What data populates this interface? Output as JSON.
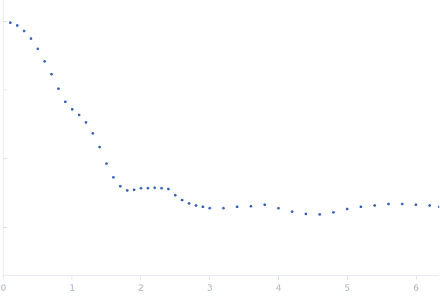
{
  "chart_data": {
    "type": "scatter",
    "color": "#3a66b5",
    "marker": "circle",
    "log": "y",
    "grid": false,
    "tick_labels": "x",
    "x": [
      0.1,
      0.2,
      0.3,
      0.4,
      0.5,
      0.6,
      0.7,
      0.8,
      0.9,
      1.0,
      1.1,
      1.2,
      1.3,
      1.4,
      1.5,
      1.6,
      1.7,
      1.8,
      1.9,
      2.0,
      2.1,
      2.2,
      2.3,
      2.4,
      2.5,
      2.6,
      2.7,
      2.8,
      2.9,
      3.0,
      3.2,
      3.4,
      3.6,
      3.8,
      4.0,
      4.2,
      4.4,
      4.6,
      4.8,
      5.0,
      5.2,
      5.4,
      5.6,
      5.8,
      6.0,
      6.2,
      6.34
    ],
    "values": [
      0.955,
      0.871,
      0.724,
      0.562,
      0.398,
      0.263,
      0.17,
      0.105,
      0.0676,
      0.0525,
      0.0437,
      0.0339,
      0.0234,
      0.0148,
      0.00851,
      0.00537,
      0.00398,
      0.00347,
      0.00355,
      0.00372,
      0.00372,
      0.0038,
      0.00372,
      0.00363,
      0.00295,
      0.00251,
      0.00224,
      0.00209,
      0.002,
      0.00191,
      0.00191,
      0.002,
      0.00204,
      0.00214,
      0.00191,
      0.0017,
      0.00158,
      0.00155,
      0.00166,
      0.00186,
      0.002,
      0.00209,
      0.00219,
      0.00219,
      0.00214,
      0.00209,
      0.002
    ],
    "xlim": [
      0,
      6.34
    ],
    "xticks": [
      0,
      1,
      2,
      3,
      4,
      5,
      6
    ],
    "ylim": [
      0.0002,
      2
    ],
    "yticks": [
      0.001,
      0.01,
      0.1,
      1
    ]
  }
}
